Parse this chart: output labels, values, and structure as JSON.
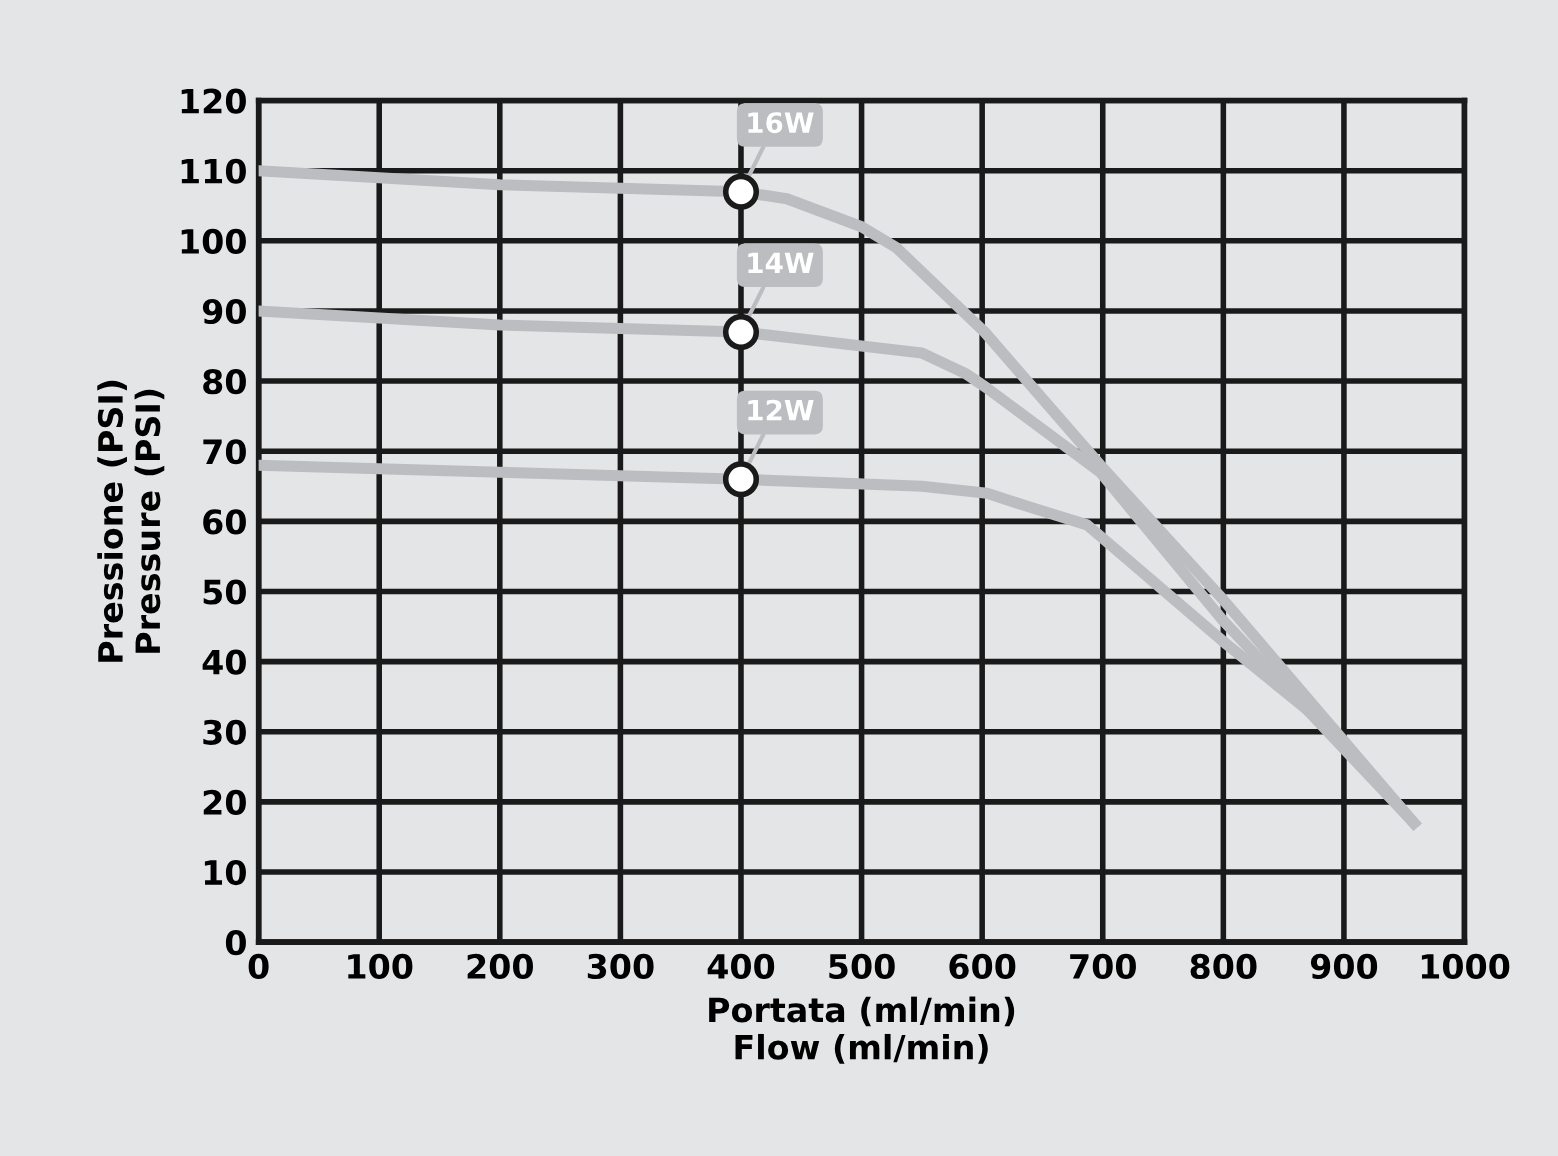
{
  "chart_data": {
    "type": "line",
    "xlabel": "Portata (ml/min)\nFlow (ml/min)",
    "ylabel": "Pressione (PSI)\nPressure (PSI)",
    "xlim": [
      0,
      1000
    ],
    "xticks": [
      0,
      100,
      200,
      300,
      400,
      500,
      600,
      700,
      800,
      900,
      1000
    ],
    "ylim": [
      0,
      120
    ],
    "yticks": [
      0,
      10,
      20,
      30,
      40,
      50,
      60,
      70,
      80,
      90,
      100,
      110,
      120
    ],
    "grid": true,
    "marker": "none",
    "line_style": "solid",
    "series": [
      {
        "color": "#bcbdc0",
        "x": [
          0,
          200,
          400,
          438,
          500,
          529,
          602,
          698,
          799,
          958
        ],
        "values": [
          110,
          108,
          107,
          106,
          102,
          99,
          87,
          68,
          49,
          17
        ]
      },
      {
        "color": "#bcbdc0",
        "x": [
          0,
          200,
          400,
          500,
          550,
          587,
          604,
          698,
          799,
          958
        ],
        "values": [
          90,
          88,
          87,
          85,
          84,
          81,
          79,
          67,
          46,
          17
        ]
      },
      {
        "color": "#bcbdc0",
        "x": [
          0,
          200,
          400,
          550,
          604,
          640,
          687,
          799,
          892,
          958
        ],
        "values": [
          68,
          67,
          66,
          65,
          64,
          62,
          59.5,
          43,
          30,
          17
        ]
      },
      {
        "type": "scatter",
        "name": "16W",
        "color": "#ffffff",
        "marker": "circle",
        "x": [
          400
        ],
        "values": [
          107
        ]
      },
      {
        "type": "scatter",
        "name": "14W",
        "color": "#ffffff",
        "marker": "circle",
        "x": [
          400
        ],
        "values": [
          87
        ]
      },
      {
        "type": "scatter",
        "name": "12W",
        "color": "#ffffff",
        "marker": "circle",
        "x": [
          400
        ],
        "values": [
          66
        ]
      }
    ]
  }
}
